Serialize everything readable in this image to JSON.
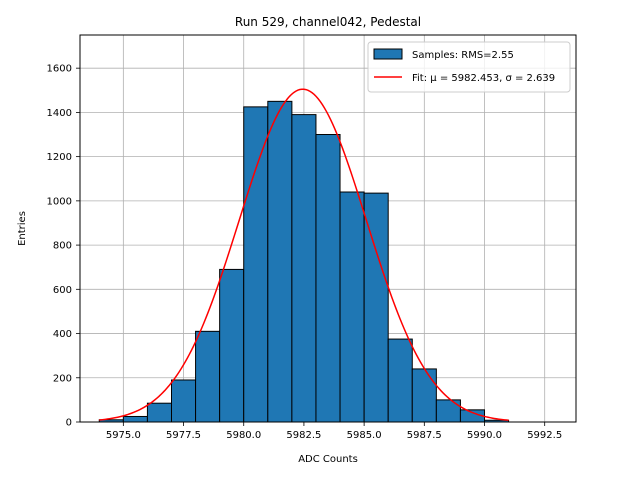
{
  "chart_data": {
    "type": "bar",
    "title": "Run 529, channel042, Pedestal",
    "xlabel": "ADC Counts",
    "ylabel": "Entries",
    "xlim": [
      5973.2,
      5993.8
    ],
    "ylim": [
      0,
      1750
    ],
    "xticks": [
      5975.0,
      5977.5,
      5980.0,
      5982.5,
      5985.0,
      5987.5,
      5990.0,
      5992.5
    ],
    "xtick_labels": [
      "5975.0",
      "5977.5",
      "5980.0",
      "5982.5",
      "5985.0",
      "5987.5",
      "5990.0",
      "5992.5"
    ],
    "yticks": [
      0,
      200,
      400,
      600,
      800,
      1000,
      1200,
      1400,
      1600
    ],
    "ytick_labels": [
      "0",
      "200",
      "400",
      "600",
      "800",
      "1000",
      "1200",
      "1400",
      "1600"
    ],
    "grid": true,
    "legend_position": "top-right",
    "bin_width": 1.0,
    "bins": [
      {
        "x0": 5974,
        "count": 10
      },
      {
        "x0": 5975,
        "count": 25
      },
      {
        "x0": 5976,
        "count": 85
      },
      {
        "x0": 5977,
        "count": 190
      },
      {
        "x0": 5978,
        "count": 410
      },
      {
        "x0": 5979,
        "count": 690
      },
      {
        "x0": 5980,
        "count": 1425
      },
      {
        "x0": 5981,
        "count": 1450
      },
      {
        "x0": 5982,
        "count": 1390
      },
      {
        "x0": 5983,
        "count": 1300
      },
      {
        "x0": 5984,
        "count": 1040
      },
      {
        "x0": 5985,
        "count": 1035
      },
      {
        "x0": 5986,
        "count": 375
      },
      {
        "x0": 5987,
        "count": 240
      },
      {
        "x0": 5988,
        "count": 100
      },
      {
        "x0": 5989,
        "count": 55
      },
      {
        "x0": 5990,
        "count": 8
      }
    ],
    "fit": {
      "type": "gaussian",
      "mu": 5982.453,
      "sigma": 2.639,
      "amplitude": 1505,
      "x_range": [
        5974,
        5991
      ]
    },
    "series": [
      {
        "name": "Samples: RMS=2.55",
        "kind": "histogram",
        "color": "#1f77b4",
        "edge_color": "#000000"
      },
      {
        "name": "Fit: μ = 5982.453, σ = 2.639",
        "kind": "line",
        "color": "#ff0000"
      }
    ]
  }
}
